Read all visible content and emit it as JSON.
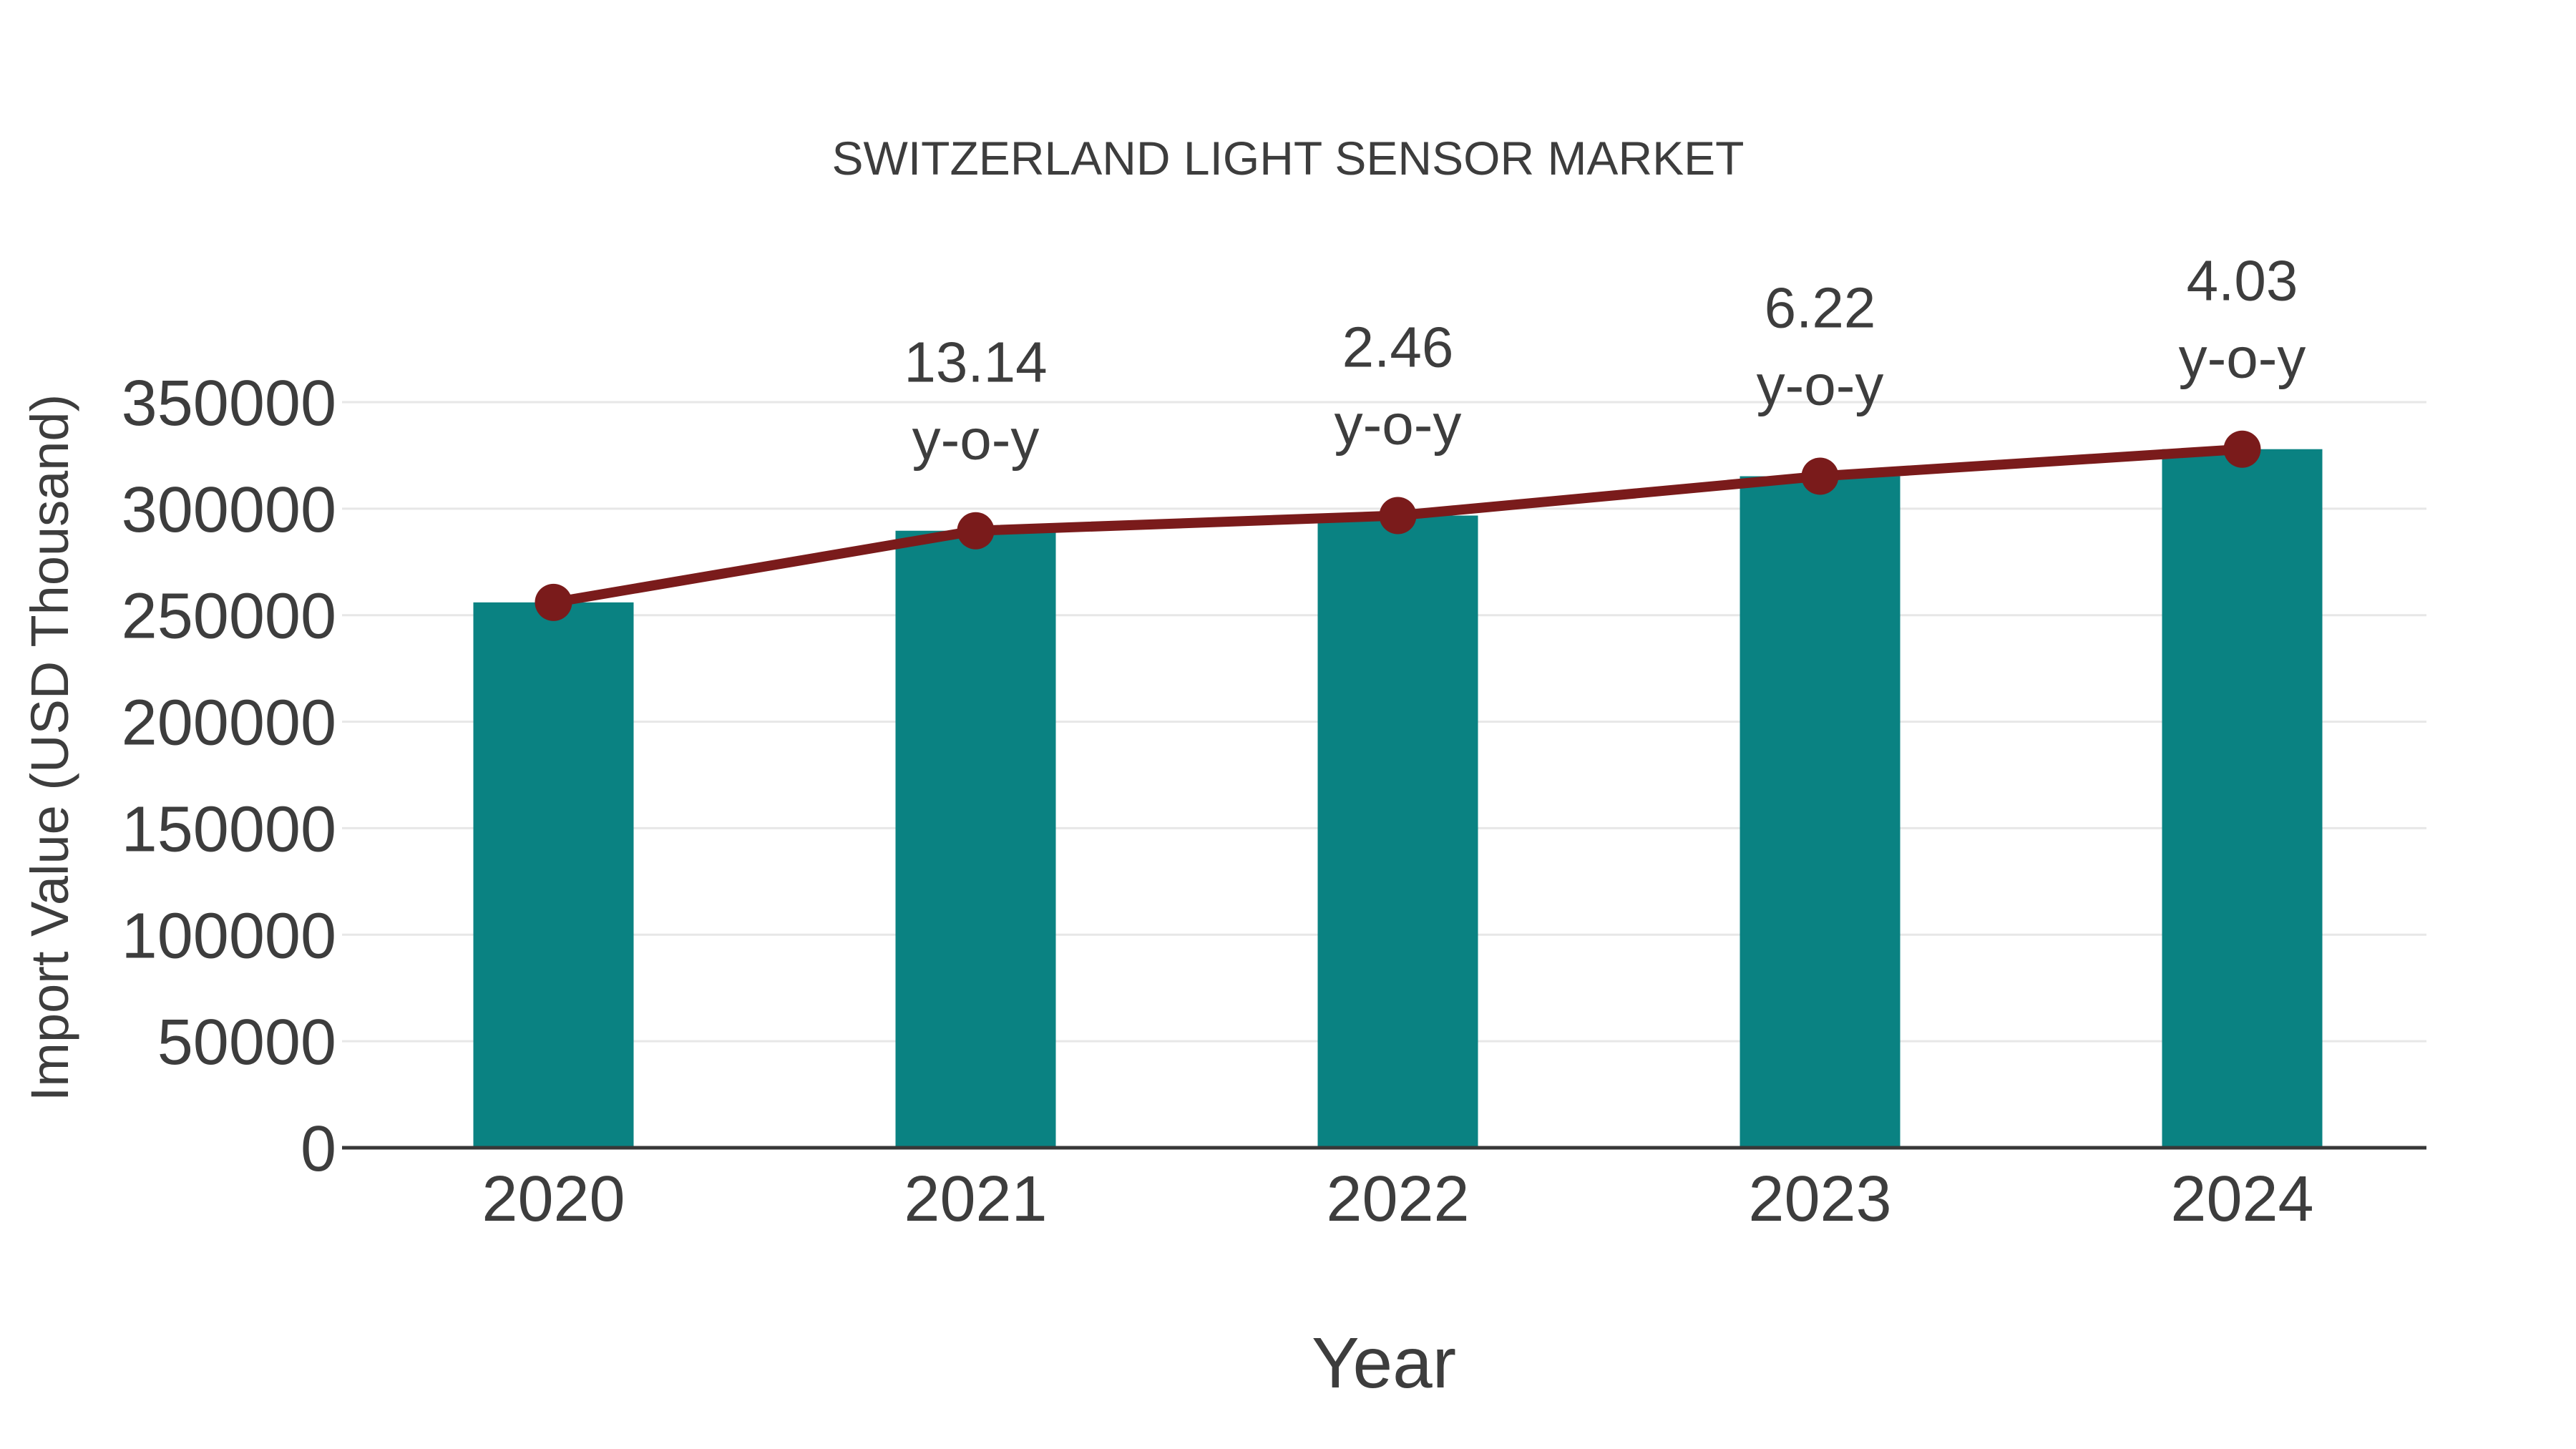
{
  "title": "SWITZERLAND LIGHT SENSOR MARKET",
  "chart_data": {
    "type": "bar",
    "title": "SWITZERLAND LIGHT SENSOR MARKET",
    "xlabel": "Year",
    "ylabel": "Import Value (USD Thousand)",
    "categories": [
      "2020",
      "2021",
      "2022",
      "2023",
      "2024"
    ],
    "series": [
      {
        "name": "Import Value bars",
        "type": "bar",
        "color": "#0a8282",
        "values": [
          256000,
          289638,
          296763,
          315222,
          327926
        ]
      },
      {
        "name": "Import Value trend",
        "type": "line",
        "color": "#7a1b1b",
        "values": [
          256000,
          289638,
          296763,
          315222,
          327926
        ]
      }
    ],
    "annotations": [
      {
        "category": "2021",
        "value": "13.14",
        "suffix": "y-o-y"
      },
      {
        "category": "2022",
        "value": "2.46",
        "suffix": "y-o-y"
      },
      {
        "category": "2023",
        "value": "6.22",
        "suffix": "y-o-y"
      },
      {
        "category": "2024",
        "value": "4.03",
        "suffix": "y-o-y"
      }
    ],
    "yticks": [
      0,
      50000,
      100000,
      150000,
      200000,
      250000,
      300000,
      350000
    ],
    "ylim": [
      0,
      364000
    ],
    "grid": true,
    "legend": "none",
    "colors": {
      "bar": "#0a8282",
      "line": "#7a1b1b",
      "marker": "#7a1b1b",
      "grid": "#e7e7e7",
      "axis": "#383838",
      "text": "#3d3d3d",
      "background": "#ffffff"
    }
  }
}
